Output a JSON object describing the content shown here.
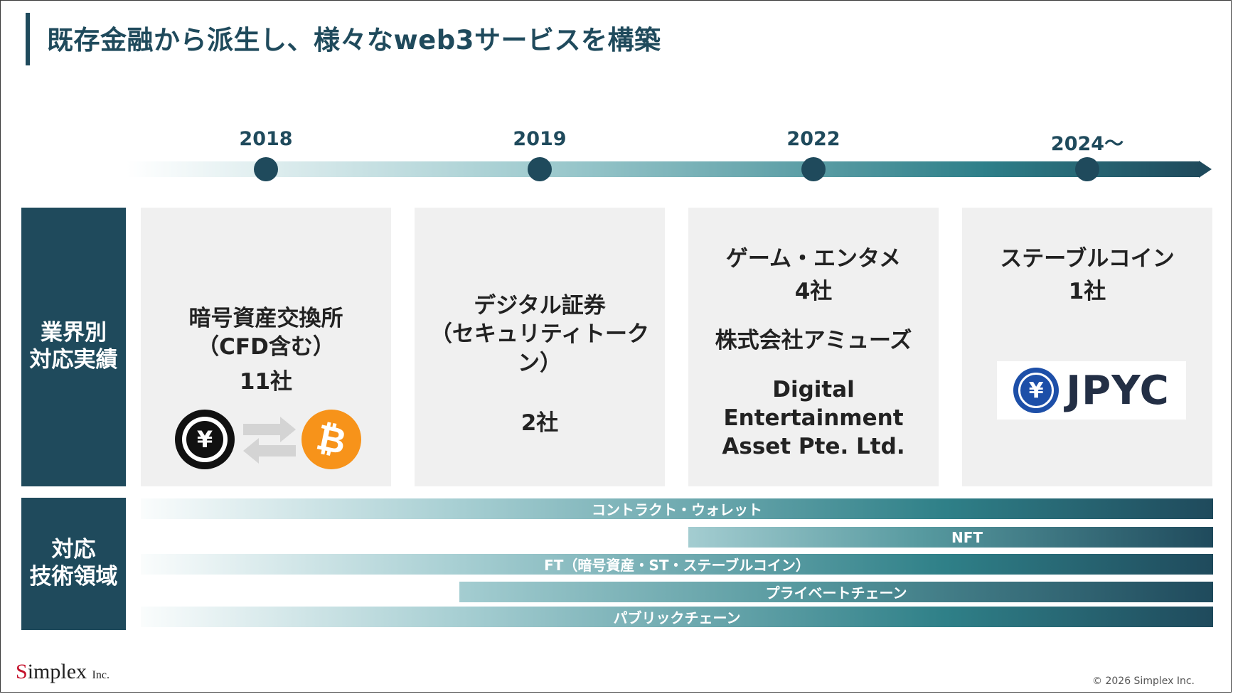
{
  "title": "既存金融から派生し、様々なweb3サービスを構築",
  "timeline": {
    "years": [
      "2018",
      "2019",
      "2022",
      "2024〜"
    ]
  },
  "industry": {
    "side_label_line1": "業界別",
    "side_label_line2": "対応実績",
    "cards": [
      {
        "title_line1": "暗号資産交換所",
        "title_line2": "（CFD含む）",
        "count": "11社"
      },
      {
        "title_line1": "デジタル証券",
        "title_line2": "（セキュリティトークン）",
        "count": "2社"
      },
      {
        "title_line1": "ゲーム・エンタメ",
        "count": "4社",
        "company1": "株式会社アミューズ",
        "company2_line1": "Digital Entertainment",
        "company2_line2": "Asset Pte. Ltd."
      },
      {
        "title_line1": "ステーブルコイン",
        "count": "1社",
        "logo_text": "JPYC"
      }
    ],
    "icons": {
      "yen_coin": "¥",
      "bitcoin": "₿",
      "yen_logo": "¥"
    }
  },
  "tech": {
    "side_label_line1": "対応",
    "side_label_line2": "技術領域",
    "bars": [
      "コントラクト・ウォレット",
      "NFT",
      "FT（暗号資産・ST・ステーブルコイン）",
      "プライベートチェーン",
      "パブリックチェーン"
    ]
  },
  "footer": {
    "logo_initial": "S",
    "logo_rest": "implex",
    "logo_suffix": "Inc.",
    "copyright": "© 2026 Simplex Inc."
  },
  "colors": {
    "primary": "#1f4a5c",
    "teal": "#2e7f89",
    "card_bg": "#f0f0f0",
    "bitcoin": "#f7931a",
    "jpyc_blue": "#1d4fa8"
  }
}
